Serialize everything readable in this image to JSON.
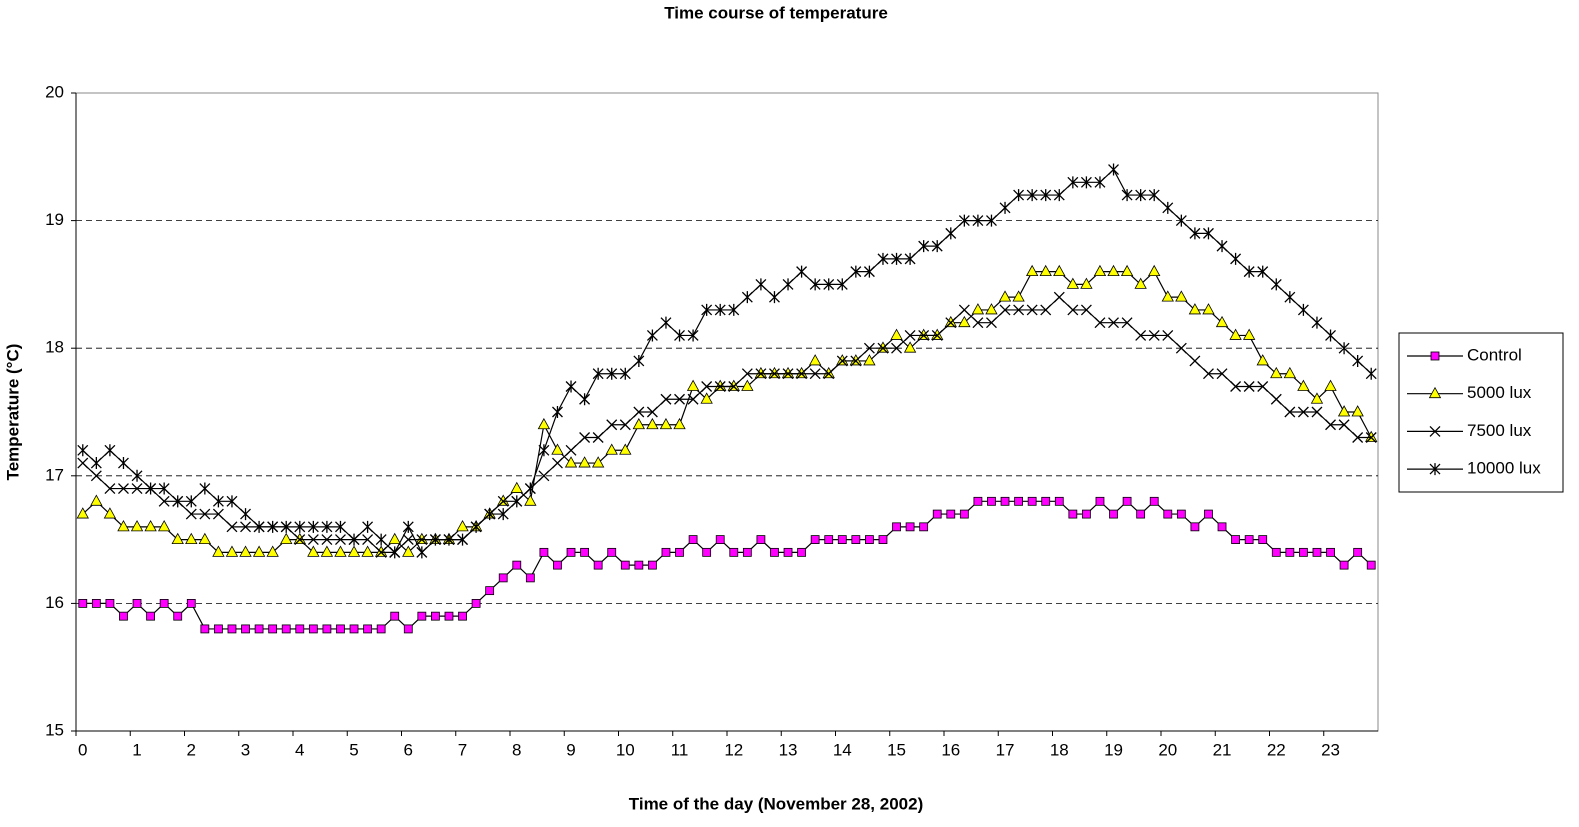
{
  "chart_data": {
    "type": "line",
    "title": "Time course of temperature",
    "x_label": "Time of the day (November 28, 2002)",
    "y_label": "Temperature (°C)",
    "categories": [
      "0",
      null,
      null,
      null,
      "1",
      null,
      null,
      null,
      "2",
      null,
      null,
      null,
      "3",
      null,
      null,
      null,
      "4",
      null,
      null,
      null,
      "5",
      null,
      null,
      null,
      "6",
      null,
      null,
      null,
      "7",
      null,
      null,
      null,
      "8",
      null,
      null,
      null,
      "9",
      null,
      null,
      null,
      "10",
      null,
      null,
      null,
      "11",
      null,
      null,
      null,
      "12",
      null,
      null,
      null,
      "13",
      null,
      null,
      null,
      "14",
      null,
      null,
      null,
      "15",
      null,
      null,
      null,
      "16",
      null,
      null,
      null,
      "17",
      null,
      null,
      null,
      "18",
      null,
      null,
      null,
      "19",
      null,
      null,
      null,
      "20",
      null,
      null,
      null,
      "21",
      null,
      null,
      null,
      "22",
      null,
      null,
      null,
      "23",
      null,
      null,
      null
    ],
    "ylim": [
      15,
      20
    ],
    "yticks": [
      15,
      16,
      17,
      18,
      19,
      20
    ],
    "grid": true,
    "legend": "right",
    "series": [
      {
        "name": "Control",
        "color": "#ff00ff",
        "marker": "square",
        "values": [
          16,
          16,
          16,
          15.9,
          16,
          15.9,
          16,
          15.9,
          16,
          15.8,
          15.8,
          15.8,
          15.8,
          15.8,
          15.8,
          15.8,
          15.8,
          15.8,
          15.8,
          15.8,
          15.8,
          15.8,
          15.8,
          15.9,
          15.8,
          15.9,
          15.9,
          15.9,
          15.9,
          16,
          16.1,
          16.2,
          16.3,
          16.2,
          16.4,
          16.3,
          16.4,
          16.4,
          16.3,
          16.4,
          16.3,
          16.3,
          16.3,
          16.4,
          16.4,
          16.5,
          16.4,
          16.5,
          16.4,
          16.4,
          16.5,
          16.4,
          16.4,
          16.4,
          16.5,
          16.5,
          16.5,
          16.5,
          16.5,
          16.5,
          16.6,
          16.6,
          16.6,
          16.7,
          16.7,
          16.7,
          16.8,
          16.8,
          16.8,
          16.8,
          16.8,
          16.8,
          16.8,
          16.7,
          16.7,
          16.8,
          16.7,
          16.8,
          16.7,
          16.8,
          16.7,
          16.7,
          16.6,
          16.7,
          16.6,
          16.5,
          16.5,
          16.5,
          16.4,
          16.4,
          16.4,
          16.4,
          16.4,
          16.3,
          16.4,
          16.3
        ]
      },
      {
        "name": "5000 lux",
        "color": "#ffff00",
        "marker": "triangle",
        "values": [
          16.7,
          16.8,
          16.7,
          16.6,
          16.6,
          16.6,
          16.6,
          16.5,
          16.5,
          16.5,
          16.4,
          16.4,
          16.4,
          16.4,
          16.4,
          16.5,
          16.5,
          16.4,
          16.4,
          16.4,
          16.4,
          16.4,
          16.4,
          16.5,
          16.4,
          16.5,
          16.5,
          16.5,
          16.6,
          16.6,
          16.7,
          16.8,
          16.9,
          16.8,
          17.4,
          17.2,
          17.1,
          17.1,
          17.1,
          17.2,
          17.2,
          17.4,
          17.4,
          17.4,
          17.4,
          17.7,
          17.6,
          17.7,
          17.7,
          17.7,
          17.8,
          17.8,
          17.8,
          17.8,
          17.9,
          17.8,
          17.9,
          17.9,
          17.9,
          18,
          18.1,
          18,
          18.1,
          18.1,
          18.2,
          18.2,
          18.3,
          18.3,
          18.4,
          18.4,
          18.6,
          18.6,
          18.6,
          18.5,
          18.5,
          18.6,
          18.6,
          18.6,
          18.5,
          18.6,
          18.4,
          18.4,
          18.3,
          18.3,
          18.2,
          18.1,
          18.1,
          17.9,
          17.8,
          17.8,
          17.7,
          17.6,
          17.7,
          17.5,
          17.5,
          17.3
        ]
      },
      {
        "name": "7500 lux",
        "color": "#000000",
        "marker": "x",
        "values": [
          17.1,
          17,
          16.9,
          16.9,
          16.9,
          16.9,
          16.8,
          16.8,
          16.7,
          16.7,
          16.7,
          16.6,
          16.6,
          16.6,
          16.6,
          16.6,
          16.5,
          16.5,
          16.5,
          16.5,
          16.5,
          16.5,
          16.4,
          16.4,
          16.5,
          16.5,
          16.5,
          16.5,
          16.5,
          16.6,
          16.7,
          16.8,
          16.8,
          16.9,
          17,
          17.1,
          17.2,
          17.3,
          17.3,
          17.4,
          17.4,
          17.5,
          17.5,
          17.6,
          17.6,
          17.6,
          17.7,
          17.7,
          17.7,
          17.8,
          17.8,
          17.8,
          17.8,
          17.8,
          17.8,
          17.8,
          17.9,
          17.9,
          18,
          18,
          18,
          18.1,
          18.1,
          18.1,
          18.2,
          18.3,
          18.2,
          18.2,
          18.3,
          18.3,
          18.3,
          18.3,
          18.4,
          18.3,
          18.3,
          18.2,
          18.2,
          18.2,
          18.1,
          18.1,
          18.1,
          18,
          17.9,
          17.8,
          17.8,
          17.7,
          17.7,
          17.7,
          17.6,
          17.5,
          17.5,
          17.5,
          17.4,
          17.4,
          17.3,
          17.3
        ]
      },
      {
        "name": "10000 lux",
        "color": "#000000",
        "marker": "star",
        "values": [
          17.2,
          17.1,
          17.2,
          17.1,
          17,
          16.9,
          16.9,
          16.8,
          16.8,
          16.9,
          16.8,
          16.8,
          16.7,
          16.6,
          16.6,
          16.6,
          16.6,
          16.6,
          16.6,
          16.6,
          16.5,
          16.6,
          16.5,
          16.4,
          16.6,
          16.4,
          16.5,
          16.5,
          16.5,
          16.6,
          16.7,
          16.7,
          16.8,
          16.9,
          17.2,
          17.5,
          17.7,
          17.6,
          17.8,
          17.8,
          17.8,
          17.9,
          18.1,
          18.2,
          18.1,
          18.1,
          18.3,
          18.3,
          18.3,
          18.4,
          18.5,
          18.4,
          18.5,
          18.6,
          18.5,
          18.5,
          18.5,
          18.6,
          18.6,
          18.7,
          18.7,
          18.7,
          18.8,
          18.8,
          18.9,
          19,
          19,
          19,
          19.1,
          19.2,
          19.2,
          19.2,
          19.2,
          19.3,
          19.3,
          19.3,
          19.4,
          19.2,
          19.2,
          19.2,
          19.1,
          19,
          18.9,
          18.9,
          18.8,
          18.7,
          18.6,
          18.6,
          18.5,
          18.4,
          18.3,
          18.2,
          18.1,
          18,
          17.9,
          17.8
        ]
      }
    ]
  }
}
